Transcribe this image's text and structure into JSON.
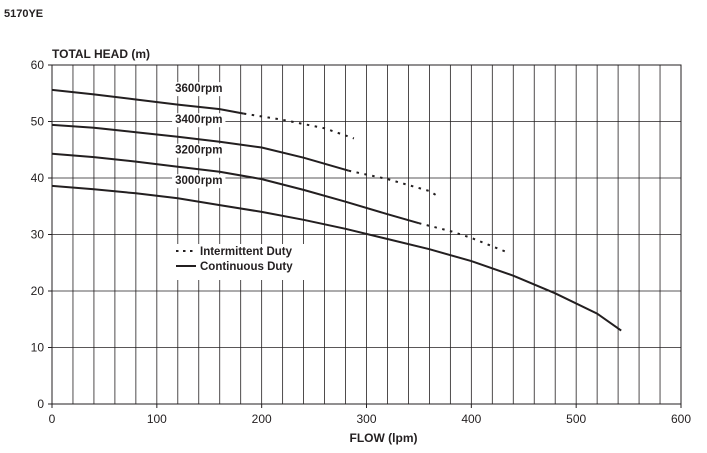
{
  "model": "5170YE",
  "chart_data": {
    "type": "line",
    "ylabel": "TOTAL HEAD (m)",
    "xlabel": "FLOW (lpm)",
    "xlim": [
      0,
      600
    ],
    "ylim": [
      0,
      60
    ],
    "x_ticks": [
      "0",
      "100",
      "200",
      "300",
      "400",
      "500",
      "600"
    ],
    "y_ticks": [
      "0",
      "10",
      "20",
      "30",
      "40",
      "50",
      "60"
    ],
    "x_minor_step": 20,
    "y_minor_step": 10,
    "grid": true,
    "legend": {
      "position": "center-left",
      "entries": [
        {
          "label": "Intermittent Duty",
          "style": "dotted"
        },
        {
          "label": "Continuous Duty",
          "style": "solid"
        }
      ]
    },
    "series": [
      {
        "name": "3600rpm",
        "label_pos": [
          140,
          55.2
        ],
        "continuous": [
          [
            0,
            55.6
          ],
          [
            40,
            54.8
          ],
          [
            80,
            53.9
          ],
          [
            120,
            53.0
          ],
          [
            160,
            52.2
          ],
          [
            183,
            51.4
          ]
        ],
        "intermittent": [
          [
            183,
            51.4
          ],
          [
            220,
            50.3
          ],
          [
            260,
            48.8
          ],
          [
            288,
            47.0
          ]
        ]
      },
      {
        "name": "3400rpm",
        "label_pos": [
          140,
          49.7
        ],
        "continuous": [
          [
            0,
            49.4
          ],
          [
            40,
            48.9
          ],
          [
            80,
            48.1
          ],
          [
            120,
            47.3
          ],
          [
            160,
            46.4
          ],
          [
            200,
            45.4
          ],
          [
            240,
            43.6
          ],
          [
            283,
            41.3
          ]
        ],
        "intermittent": [
          [
            283,
            41.3
          ],
          [
            320,
            39.8
          ],
          [
            360,
            37.7
          ],
          [
            366,
            37.0
          ]
        ]
      },
      {
        "name": "3200rpm",
        "label_pos": [
          140,
          44.3
        ],
        "continuous": [
          [
            0,
            44.3
          ],
          [
            40,
            43.7
          ],
          [
            80,
            42.9
          ],
          [
            120,
            42.0
          ],
          [
            160,
            41.1
          ],
          [
            200,
            39.8
          ],
          [
            240,
            37.9
          ],
          [
            280,
            35.8
          ],
          [
            320,
            33.6
          ],
          [
            350,
            32.0
          ]
        ],
        "intermittent": [
          [
            350,
            32.0
          ],
          [
            380,
            30.6
          ],
          [
            400,
            29.4
          ],
          [
            435,
            26.8
          ]
        ]
      },
      {
        "name": "3000rpm",
        "label_pos": [
          140,
          38.9
        ],
        "continuous": [
          [
            0,
            38.6
          ],
          [
            40,
            38.0
          ],
          [
            80,
            37.3
          ],
          [
            120,
            36.4
          ],
          [
            160,
            35.2
          ],
          [
            200,
            34.0
          ],
          [
            240,
            32.6
          ],
          [
            280,
            31.0
          ],
          [
            320,
            29.2
          ],
          [
            360,
            27.4
          ],
          [
            400,
            25.3
          ],
          [
            440,
            22.7
          ],
          [
            480,
            19.6
          ],
          [
            520,
            16.0
          ],
          [
            543,
            13.0
          ]
        ],
        "intermittent": []
      }
    ]
  }
}
